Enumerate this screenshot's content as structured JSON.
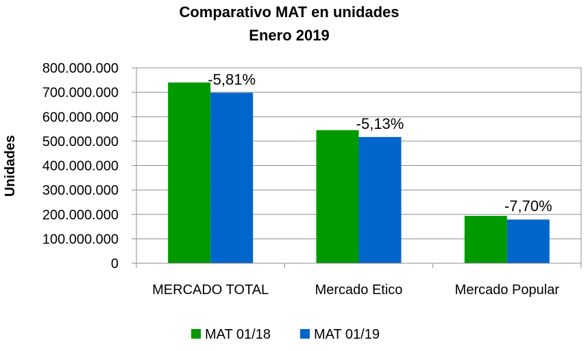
{
  "chart_data": {
    "type": "bar",
    "title": "Comparativo  MAT en unidades",
    "subtitle": "Enero 2019",
    "xlabel": "",
    "ylabel": "Unidades",
    "ylim": [
      0,
      800000000
    ],
    "yticks": [
      0,
      100000000,
      200000000,
      300000000,
      400000000,
      500000000,
      600000000,
      700000000,
      800000000
    ],
    "ytick_labels": [
      "0",
      "100.000.000",
      "200.000.000",
      "300.000.000",
      "400.000.000",
      "500.000.000",
      "600.000.000",
      "700.000.000",
      "800.000.000"
    ],
    "categories": [
      "MERCADO TOTAL",
      "Mercado Etico",
      "Mercado Popular"
    ],
    "series": [
      {
        "name": "MAT 01/18",
        "color": "#009900",
        "values": [
          740000000,
          545000000,
          194000000
        ]
      },
      {
        "name": "MAT 01/19",
        "color": "#0066CC",
        "values": [
          698000000,
          517000000,
          179000000
        ]
      }
    ],
    "annotations": [
      "-5,81%",
      "-5,13%",
      "-7,70%"
    ],
    "grid": true,
    "legend_position": "bottom"
  }
}
